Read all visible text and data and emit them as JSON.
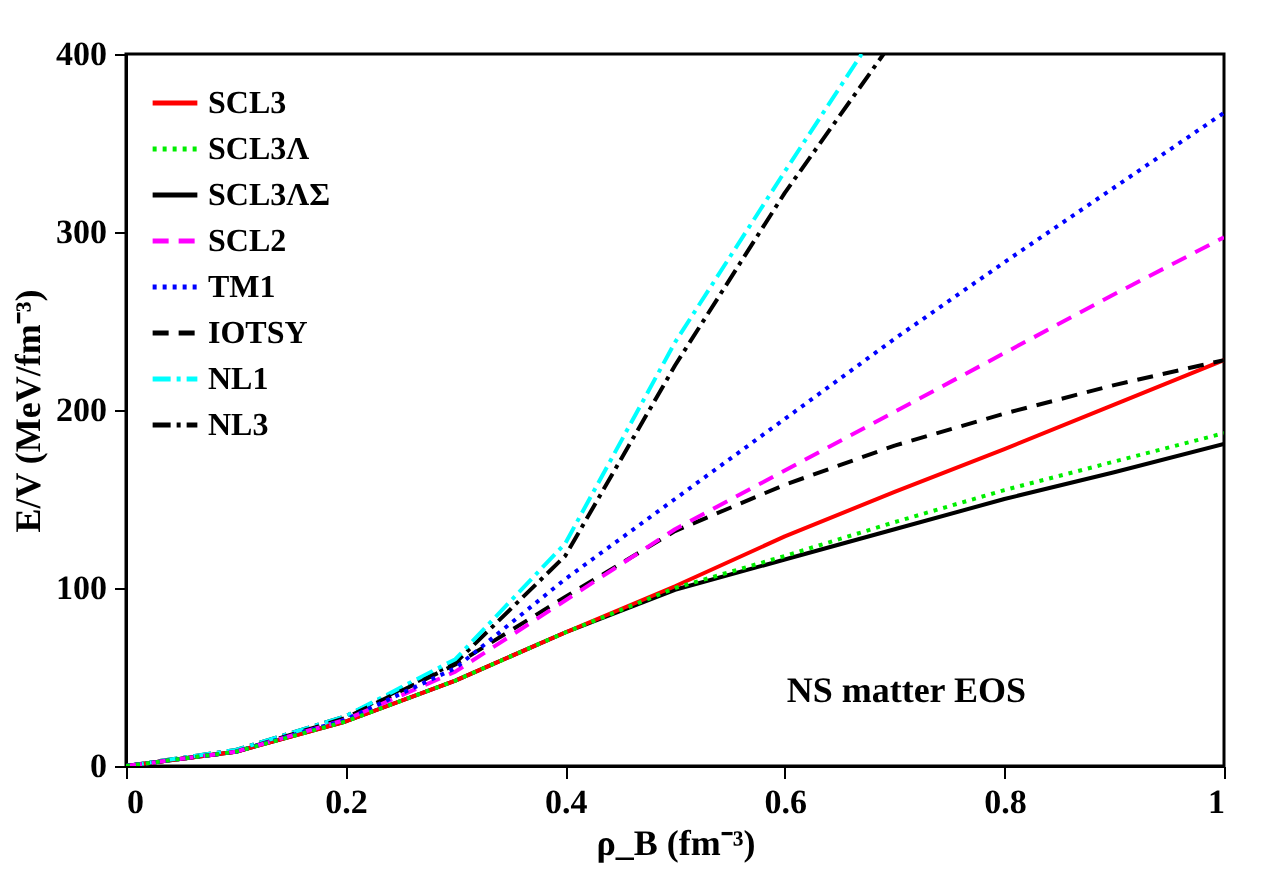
{
  "chart_data": {
    "type": "line",
    "xlabel": "ρ_B (fm⁻³)",
    "ylabel": "E/V (MeV/fm⁻³)",
    "xlim": [
      0,
      1
    ],
    "ylim": [
      0,
      400
    ],
    "xticks": [
      0,
      0.2,
      0.4,
      0.6,
      0.8,
      1
    ],
    "yticks": [
      0,
      100,
      200,
      300,
      400
    ],
    "grid": false,
    "legend": "top left",
    "annotations": [
      "NS matter EOS"
    ],
    "x": [
      0,
      0.1,
      0.2,
      0.3,
      0.4,
      0.5,
      0.6,
      0.7,
      0.8,
      0.9,
      1
    ],
    "series": [
      {
        "name": "SCL3",
        "color": "#ff0000",
        "line_style": "solid",
        "values": [
          0,
          8,
          25,
          48,
          75,
          101,
          129,
          154,
          178,
          203,
          228
        ]
      },
      {
        "name": "SCL3Λ",
        "color": "#00ee00",
        "line_style": "dotted",
        "values": [
          0,
          8,
          25,
          48,
          75,
          100,
          118,
          137,
          155,
          171,
          187
        ]
      },
      {
        "name": "SCL3ΛΣ",
        "color": "#000000",
        "line_style": "solid",
        "values": [
          0,
          8,
          25,
          48,
          75,
          99,
          116,
          133,
          150,
          165,
          181
        ]
      },
      {
        "name": "SCL2",
        "color": "#ff00ff",
        "line_style": "dashed",
        "values": [
          0,
          8,
          26,
          53,
          93,
          133,
          166,
          199,
          232,
          265,
          297
        ]
      },
      {
        "name": "TM1",
        "color": "#0000ff",
        "line_style": "dotted",
        "values": [
          0,
          8,
          26,
          55,
          105,
          150,
          195,
          240,
          283,
          325,
          367
        ]
      },
      {
        "name": "IOTSY",
        "color": "#000000",
        "line_style": "dashed",
        "values": [
          0,
          8,
          27,
          57,
          95,
          132,
          158,
          180,
          198,
          214,
          228
        ]
      },
      {
        "name": "NL1",
        "color": "#00ffff",
        "line_style": "dashdot",
        "x": [
          0,
          0.1,
          0.2,
          0.3,
          0.4,
          0.5,
          0.6,
          0.67
        ],
        "values": [
          0,
          9,
          28,
          60,
          125,
          238,
          334,
          400
        ]
      },
      {
        "name": "NL3",
        "color": "#000000",
        "line_style": "dashdot",
        "x": [
          0,
          0.1,
          0.2,
          0.3,
          0.4,
          0.5,
          0.6,
          0.69
        ],
        "values": [
          0,
          9,
          28,
          58,
          118,
          225,
          322,
          400
        ]
      }
    ]
  }
}
